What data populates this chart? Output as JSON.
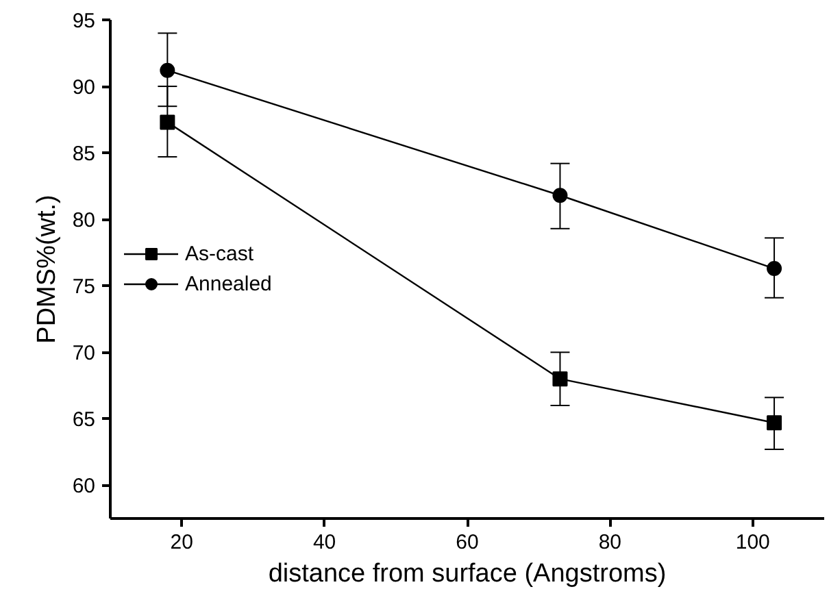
{
  "chart_data": {
    "type": "line",
    "xlabel": "distance from surface (Angstroms)",
    "ylabel": "PDMS%(wt.)",
    "x": [
      18,
      73,
      103
    ],
    "series": [
      {
        "name": "As-cast",
        "color": "#000000",
        "marker": "square",
        "values": [
          87.3,
          68,
          64.7
        ],
        "errors": [
          [
            84.7,
            90
          ],
          [
            66,
            70
          ],
          [
            62.7,
            66.6
          ]
        ]
      },
      {
        "name": "Annealed",
        "color": "#000000",
        "marker": "circle",
        "values": [
          91.2,
          81.8,
          76.3
        ],
        "errors": [
          [
            88.5,
            94
          ],
          [
            79.3,
            84.2
          ],
          [
            74.1,
            78.6
          ]
        ]
      }
    ],
    "xlim": [
      10,
      110
    ],
    "xticks": [
      20,
      40,
      60,
      80,
      100
    ],
    "ylim": [
      57.5,
      95
    ],
    "yticks": [
      60,
      65,
      70,
      75,
      80,
      85,
      90,
      95
    ],
    "grid": false,
    "legend": "left",
    "line_style": "solid"
  }
}
